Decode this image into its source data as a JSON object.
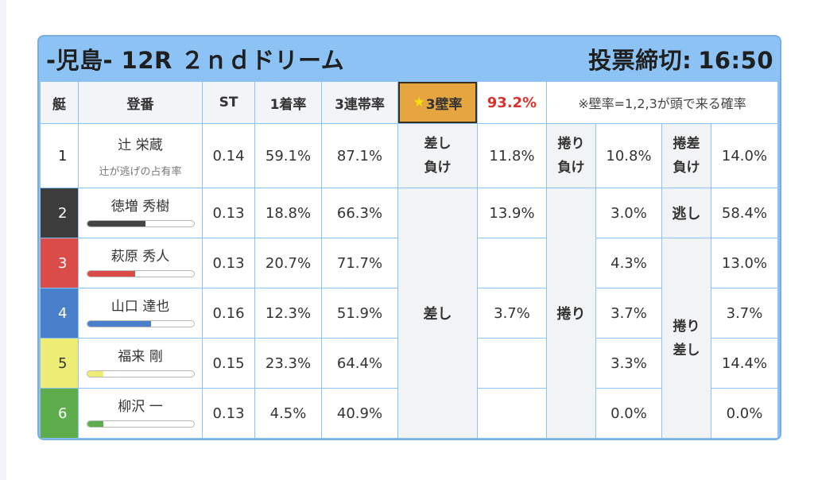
{
  "race": {
    "title": "-児島- 12R ２ｎｄドリーム",
    "deadline_label": "投票締切:",
    "deadline_time": "16:50"
  },
  "headers": {
    "boat": "艇",
    "register": "登番",
    "st": "ST",
    "first_rate": "1着率",
    "top3_rate": "3連帯率",
    "star": "★",
    "wall_label": "3壁率",
    "wall_pct": "93.2%",
    "note": "※壁率=1,2,3が頭で来る確率"
  },
  "racers": [
    {
      "num": "1",
      "name": "辻 栄蔵",
      "sub": "辻が逃げの占有率",
      "st": "0.14",
      "first": "59.1%",
      "top3": "87.1%"
    },
    {
      "num": "2",
      "name": "徳増 秀樹",
      "bar": 0.55,
      "st": "0.13",
      "first": "18.8%",
      "top3": "66.3%"
    },
    {
      "num": "3",
      "name": "萩原 秀人",
      "bar": 0.45,
      "st": "0.13",
      "first": "20.7%",
      "top3": "71.7%"
    },
    {
      "num": "4",
      "name": "山口 達也",
      "bar": 0.6,
      "st": "0.16",
      "first": "12.3%",
      "top3": "51.9%"
    },
    {
      "num": "5",
      "name": "福来 剛",
      "bar": 0.15,
      "st": "0.15",
      "first": "23.3%",
      "top3": "64.4%"
    },
    {
      "num": "6",
      "name": "柳沢 一",
      "bar": 0.15,
      "st": "0.13",
      "first": "4.5%",
      "top3": "40.9%"
    }
  ],
  "patterns": {
    "sashi_make_l1": "差し",
    "sashi_make_l2": "負け",
    "sashi_make_val": "11.8%",
    "makuri_make_l1": "捲り",
    "makuri_make_l2": "負け",
    "makuri_make_val": "10.8%",
    "makurizashi_make_l1": "捲差",
    "makurizashi_make_l2": "負け",
    "makurizashi_make_val": "14.0%",
    "sashi": "差し",
    "sashi_vals": [
      "13.9%",
      "",
      "3.7%",
      "",
      ""
    ],
    "makuri": "捲り",
    "makuri_vals": [
      "3.0%",
      "4.3%",
      "3.7%",
      "3.3%",
      "0.0%"
    ],
    "nige": "逃し",
    "nige_val": "58.4%",
    "makurizashi_l1": "捲り",
    "makurizashi_l2": "差し",
    "makurizashi_vals": [
      "13.0%",
      "3.7%",
      "14.4%",
      "0.0%"
    ]
  },
  "colors": {
    "header_bg": "#8cc3f4",
    "star_header_bg": "#e5a53f",
    "pct_red": "#d5332b",
    "boat1": "#ffffff",
    "boat2": "#3c3c3c",
    "boat3": "#d94c47",
    "boat4": "#4a7fcc",
    "boat5": "#edec75",
    "boat6": "#5dad4d"
  }
}
